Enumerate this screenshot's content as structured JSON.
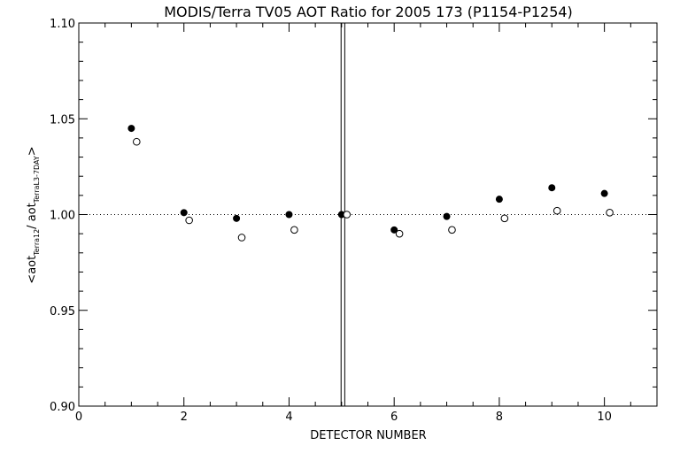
{
  "chart_data": {
    "type": "scatter",
    "title": "MODIS/Terra TV05 AOT Ratio for 2005 173 (P1154-P1254)",
    "xlabel": "DETECTOR NUMBER",
    "ylabel": {
      "prefix": "<aot",
      "sub1": "Terra12",
      "mid": "/ aot",
      "sub2": "TerraL3-7DAY",
      "suffix": ">"
    },
    "xlim": [
      0,
      11
    ],
    "ylim": [
      0.9,
      1.1
    ],
    "x_ticks": [
      0,
      2,
      4,
      6,
      8,
      10
    ],
    "x_tick_labels": [
      "0",
      "2",
      "4",
      "6",
      "8",
      "10"
    ],
    "y_ticks": [
      0.9,
      0.95,
      1.0,
      1.05,
      1.1
    ],
    "y_tick_labels": [
      "0.90",
      "0.95",
      "1.00",
      "1.05",
      "1.10"
    ],
    "reference_line_y": 1.0,
    "vertical_lines_x": [
      4.99,
      5.06
    ],
    "series": [
      {
        "marker": "filled-circle",
        "x": [
          1,
          2,
          3,
          4,
          5,
          6,
          7,
          8,
          9,
          10
        ],
        "y": [
          1.045,
          1.001,
          0.998,
          1.0,
          1.0,
          0.992,
          0.999,
          1.008,
          1.014,
          1.011
        ]
      },
      {
        "marker": "open-circle",
        "x": [
          1.1,
          2.1,
          3.1,
          4.1,
          5.1,
          6.1,
          7.1,
          8.1,
          9.1,
          10.1
        ],
        "y": [
          1.038,
          0.997,
          0.988,
          0.992,
          1.0,
          0.99,
          0.992,
          0.998,
          1.002,
          1.001
        ]
      }
    ],
    "grid": false,
    "legend": "none"
  }
}
